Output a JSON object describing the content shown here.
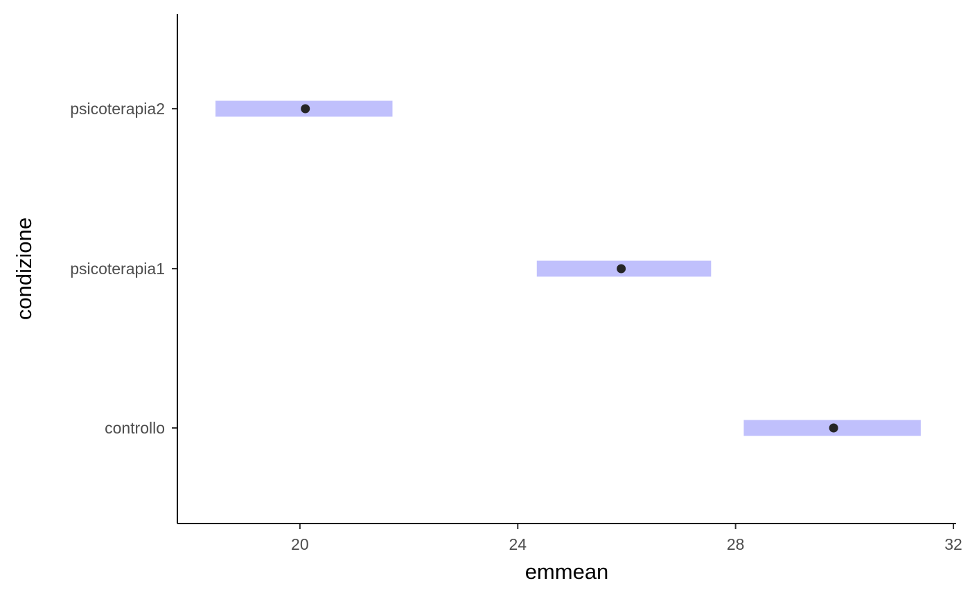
{
  "chart_data": {
    "type": "scatter",
    "title": "",
    "xlabel": "emmean",
    "ylabel": "condizione",
    "categories": [
      "controllo",
      "psicoterapia1",
      "psicoterapia2"
    ],
    "points": [
      {
        "category": "controllo",
        "emmean": 29.8,
        "lower": 28.15,
        "upper": 31.4
      },
      {
        "category": "psicoterapia1",
        "emmean": 25.9,
        "lower": 24.35,
        "upper": 27.55
      },
      {
        "category": "psicoterapia2",
        "emmean": 20.1,
        "lower": 18.45,
        "upper": 21.7
      }
    ],
    "xlim": [
      17.75,
      32.05
    ],
    "xticks": [
      20,
      24,
      28,
      32
    ],
    "grid": false,
    "legend": "none",
    "colors": {
      "interval": "#c0c0fc",
      "point": "#262626",
      "axis": "#000000",
      "tick_text": "#4d4d4d"
    }
  }
}
